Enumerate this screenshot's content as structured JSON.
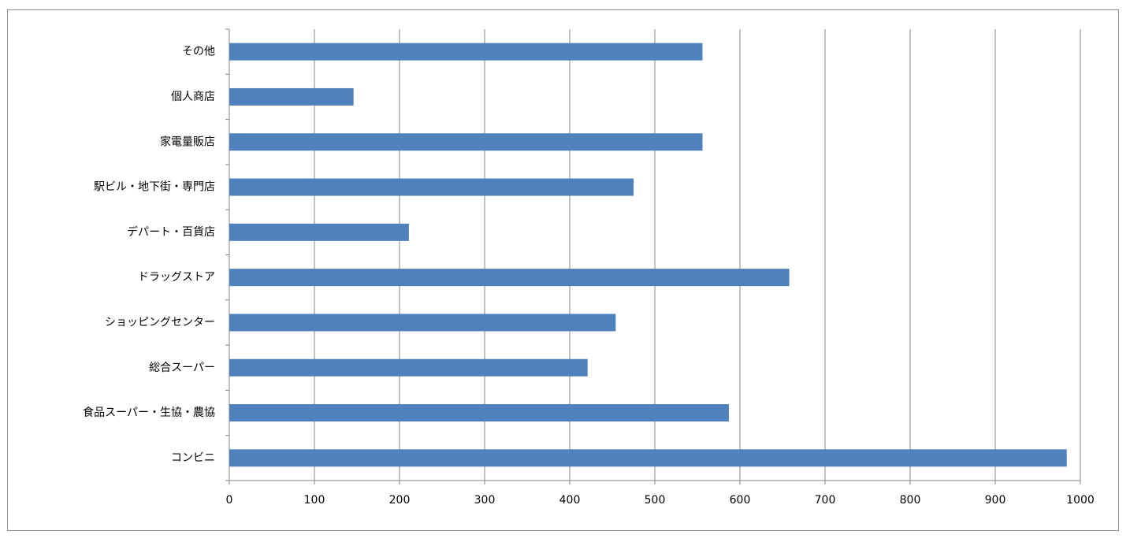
{
  "chart_data": {
    "type": "bar",
    "orientation": "horizontal",
    "categories": [
      "その他",
      "個人商店",
      "家電量販店",
      "駅ビル・地下街・専門店",
      "デパート・百貨店",
      "ドラッグストア",
      "ショッピングセンター",
      "総合スーパー",
      "食品スーパー・生協・農協",
      "コンビニ"
    ],
    "values": [
      556,
      146,
      556,
      475,
      211,
      658,
      454,
      421,
      587,
      984
    ],
    "color": "#4f81bd",
    "xlim": [
      0,
      1000
    ],
    "xticks": [
      0,
      100,
      200,
      300,
      400,
      500,
      600,
      700,
      800,
      900,
      1000
    ],
    "grid": true
  }
}
